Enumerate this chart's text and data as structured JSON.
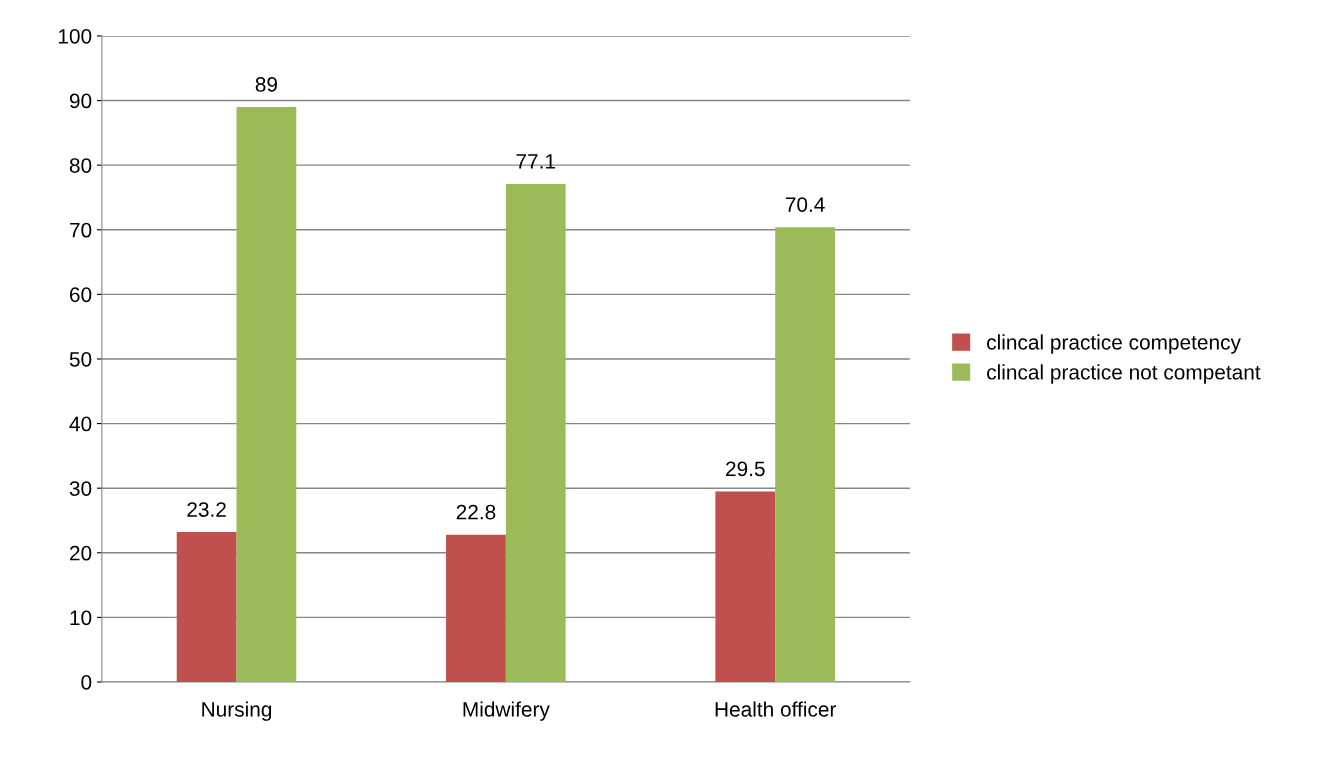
{
  "chart_data": {
    "type": "bar",
    "categories": [
      "Nursing",
      "Midwifery",
      "Health officer"
    ],
    "series": [
      {
        "name": "clincal practice competency",
        "color": "#c0504d",
        "values": [
          23.2,
          22.8,
          29.5
        ]
      },
      {
        "name": "clincal practice not competant",
        "color": "#9bbb59",
        "values": [
          89,
          77.1,
          70.4
        ]
      }
    ],
    "ylim": [
      0,
      100
    ],
    "yticks": [
      0,
      10,
      20,
      30,
      40,
      50,
      60,
      70,
      80,
      90,
      100
    ],
    "grid": "y",
    "legend": "right",
    "data_labels": true
  }
}
